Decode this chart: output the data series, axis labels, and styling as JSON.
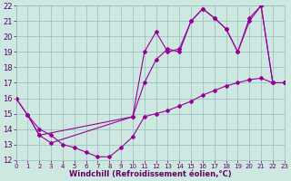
{
  "line1_x": [
    0,
    1,
    2,
    3,
    4,
    5,
    6,
    7,
    8,
    9,
    10,
    11,
    12,
    13,
    14,
    15,
    16,
    17,
    18,
    19,
    20,
    21,
    22,
    23
  ],
  "line1_y": [
    16.0,
    14.9,
    14.0,
    13.6,
    13.0,
    12.8,
    12.5,
    12.2,
    12.2,
    12.8,
    13.5,
    14.8,
    15.0,
    15.2,
    15.5,
    15.8,
    16.2,
    16.5,
    16.8,
    17.0,
    17.2,
    17.3,
    17.0,
    17.0
  ],
  "line2_x": [
    0,
    1,
    2,
    10,
    11,
    12,
    13,
    14,
    15,
    16,
    17,
    18,
    19,
    20,
    21,
    22,
    23
  ],
  "line2_y": [
    16.0,
    14.9,
    13.6,
    14.8,
    19.0,
    20.3,
    19.0,
    19.2,
    21.0,
    21.8,
    21.2,
    20.5,
    19.0,
    21.2,
    22.0,
    17.0,
    17.0
  ],
  "line3_x": [
    1,
    2,
    3,
    10,
    11,
    12,
    13,
    14,
    15,
    16,
    17,
    18,
    19,
    20,
    21,
    22,
    23
  ],
  "line3_y": [
    14.9,
    13.6,
    13.1,
    14.8,
    17.0,
    18.5,
    19.2,
    19.0,
    21.0,
    21.8,
    21.2,
    20.5,
    19.0,
    21.0,
    22.0,
    17.0,
    17.0
  ],
  "line_color": "#990099",
  "marker": "D",
  "marker_size": 2,
  "linewidth": 0.8,
  "bg_color": "#cce8e0",
  "grid_color": "#99bbbb",
  "xlabel": "Windchill (Refroidissement éolien,°C)",
  "xlabel_color": "#660066",
  "xlabel_fontsize": 6,
  "tick_color": "#660066",
  "ytick_fontsize": 6,
  "xtick_fontsize": 5,
  "ylim": [
    12,
    22
  ],
  "xlim": [
    0,
    23
  ],
  "yticks": [
    12,
    13,
    14,
    15,
    16,
    17,
    18,
    19,
    20,
    21,
    22
  ],
  "xticks": [
    0,
    1,
    2,
    3,
    4,
    5,
    6,
    7,
    8,
    9,
    10,
    11,
    12,
    13,
    14,
    15,
    16,
    17,
    18,
    19,
    20,
    21,
    22,
    23
  ]
}
